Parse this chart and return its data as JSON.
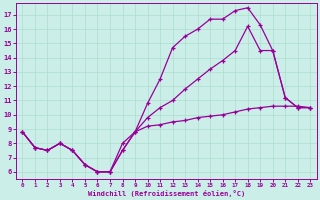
{
  "bg_color": "#cceee8",
  "line_color": "#990099",
  "grid_color": "#aaddcc",
  "xlabel": "Windchill (Refroidissement éolien,°C)",
  "ylabel_ticks": [
    6,
    7,
    8,
    9,
    10,
    11,
    12,
    13,
    14,
    15,
    16,
    17
  ],
  "xlabel_ticks": [
    0,
    1,
    2,
    3,
    4,
    5,
    6,
    7,
    8,
    9,
    10,
    11,
    12,
    13,
    14,
    15,
    16,
    17,
    18,
    19,
    20,
    21,
    22,
    23
  ],
  "xlim": [
    -0.5,
    23.5
  ],
  "ylim": [
    5.5,
    17.8
  ],
  "line1_x": [
    0,
    1,
    2,
    3,
    4,
    5,
    6,
    7,
    8,
    9,
    10,
    11,
    12,
    13,
    14,
    15,
    16,
    17,
    18,
    19,
    20,
    21,
    22,
    23
  ],
  "line1_y": [
    8.8,
    7.7,
    7.5,
    8.0,
    7.5,
    6.5,
    6.0,
    6.0,
    8.0,
    8.8,
    10.8,
    12.5,
    14.7,
    15.5,
    16.0,
    16.7,
    16.7,
    17.3,
    17.5,
    16.3,
    14.5,
    11.2,
    10.5,
    10.5
  ],
  "line2_x": [
    0,
    1,
    2,
    3,
    4,
    5,
    6,
    7,
    8,
    9,
    10,
    11,
    12,
    13,
    14,
    15,
    16,
    17,
    18,
    19,
    20,
    21,
    22,
    23
  ],
  "line2_y": [
    8.8,
    7.7,
    7.5,
    8.0,
    7.5,
    6.5,
    6.0,
    6.0,
    7.5,
    8.8,
    9.8,
    10.5,
    11.0,
    11.8,
    12.5,
    13.2,
    13.8,
    14.5,
    16.2,
    14.5,
    14.5,
    11.2,
    10.5,
    10.5
  ],
  "line3_x": [
    0,
    1,
    2,
    3,
    4,
    5,
    6,
    7,
    8,
    9,
    10,
    11,
    12,
    13,
    14,
    15,
    16,
    17,
    18,
    19,
    20,
    21,
    22,
    23
  ],
  "line3_y": [
    8.8,
    7.7,
    7.5,
    8.0,
    7.5,
    6.5,
    6.0,
    6.0,
    7.5,
    8.8,
    9.2,
    9.3,
    9.5,
    9.6,
    9.8,
    9.9,
    10.0,
    10.2,
    10.4,
    10.5,
    10.6,
    10.6,
    10.6,
    10.5
  ],
  "marker": "+"
}
